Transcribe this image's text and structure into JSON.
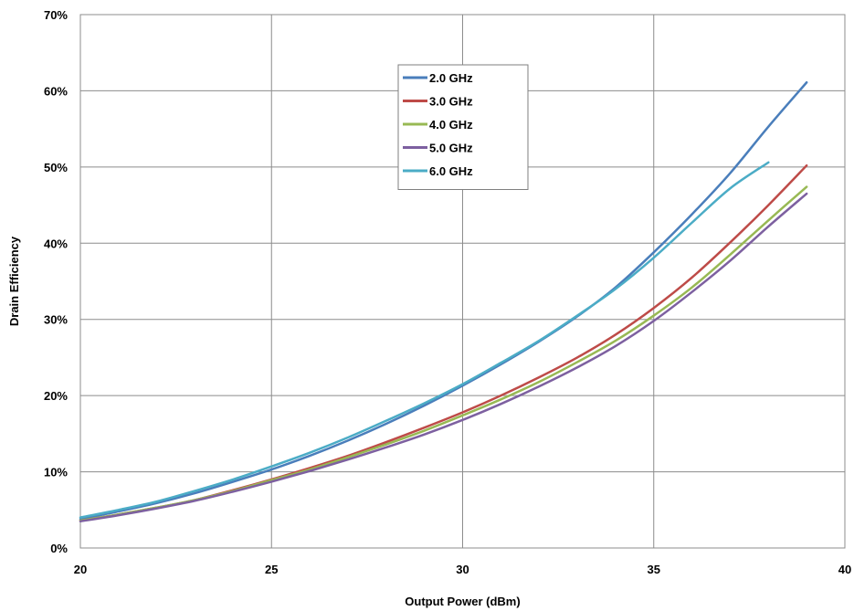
{
  "chart_data": {
    "type": "line",
    "title": "",
    "xlabel": "Output Power (dBm)",
    "ylabel": "Drain Efficiency",
    "xlim": [
      20,
      40
    ],
    "ylim": [
      0,
      0.7
    ],
    "x_ticks": [
      "20",
      "25",
      "30",
      "35",
      "40"
    ],
    "y_ticks": [
      "0%",
      "10%",
      "20%",
      "30%",
      "40%",
      "50%",
      "60%",
      "70%"
    ],
    "grid": true,
    "legend_position": "top-center",
    "series": [
      {
        "name": "2.0 GHz",
        "color": "#4A7EBB",
        "x": [
          20,
          21,
          22,
          23,
          24,
          25,
          26,
          27,
          28,
          29,
          30,
          31,
          32,
          33,
          34,
          35,
          36,
          37,
          38,
          39
        ],
        "y": [
          0.038,
          0.048,
          0.059,
          0.072,
          0.087,
          0.103,
          0.121,
          0.141,
          0.163,
          0.187,
          0.213,
          0.241,
          0.271,
          0.304,
          0.342,
          0.388,
          0.438,
          0.492,
          0.553,
          0.611
        ]
      },
      {
        "name": "3.0 GHz",
        "color": "#BE4B48",
        "x": [
          20,
          21,
          22,
          23,
          24,
          25,
          26,
          27,
          28,
          29,
          30,
          31,
          32,
          33,
          34,
          35,
          36,
          37,
          38,
          39
        ],
        "y": [
          0.036,
          0.044,
          0.053,
          0.063,
          0.076,
          0.09,
          0.105,
          0.121,
          0.139,
          0.158,
          0.178,
          0.2,
          0.224,
          0.25,
          0.28,
          0.315,
          0.355,
          0.401,
          0.45,
          0.502
        ]
      },
      {
        "name": "4.0 GHz",
        "color": "#98B954",
        "x": [
          20,
          21,
          22,
          23,
          24,
          25,
          26,
          27,
          28,
          29,
          30,
          31,
          32,
          33,
          34,
          35,
          36,
          37,
          38,
          39
        ],
        "y": [
          0.036,
          0.044,
          0.053,
          0.063,
          0.075,
          0.089,
          0.103,
          0.119,
          0.136,
          0.154,
          0.174,
          0.195,
          0.218,
          0.244,
          0.272,
          0.305,
          0.342,
          0.385,
          0.43,
          0.474
        ]
      },
      {
        "name": "5.0 GHz",
        "color": "#7D60A0",
        "x": [
          20,
          21,
          22,
          23,
          24,
          25,
          26,
          27,
          28,
          29,
          30,
          31,
          32,
          33,
          34,
          35,
          36,
          37,
          38,
          39
        ],
        "y": [
          0.035,
          0.043,
          0.052,
          0.062,
          0.074,
          0.087,
          0.101,
          0.116,
          0.132,
          0.149,
          0.168,
          0.189,
          0.212,
          0.237,
          0.265,
          0.298,
          0.336,
          0.377,
          0.422,
          0.465
        ]
      },
      {
        "name": "6.0 GHz",
        "color": "#4BACC6",
        "x": [
          20,
          21,
          22,
          23,
          24,
          25,
          26,
          27,
          28,
          29,
          30,
          31,
          32,
          33,
          34,
          35,
          36,
          37,
          38
        ],
        "y": [
          0.04,
          0.05,
          0.061,
          0.075,
          0.09,
          0.107,
          0.125,
          0.145,
          0.167,
          0.19,
          0.215,
          0.243,
          0.272,
          0.305,
          0.34,
          0.381,
          0.427,
          0.472,
          0.506
        ]
      }
    ]
  }
}
